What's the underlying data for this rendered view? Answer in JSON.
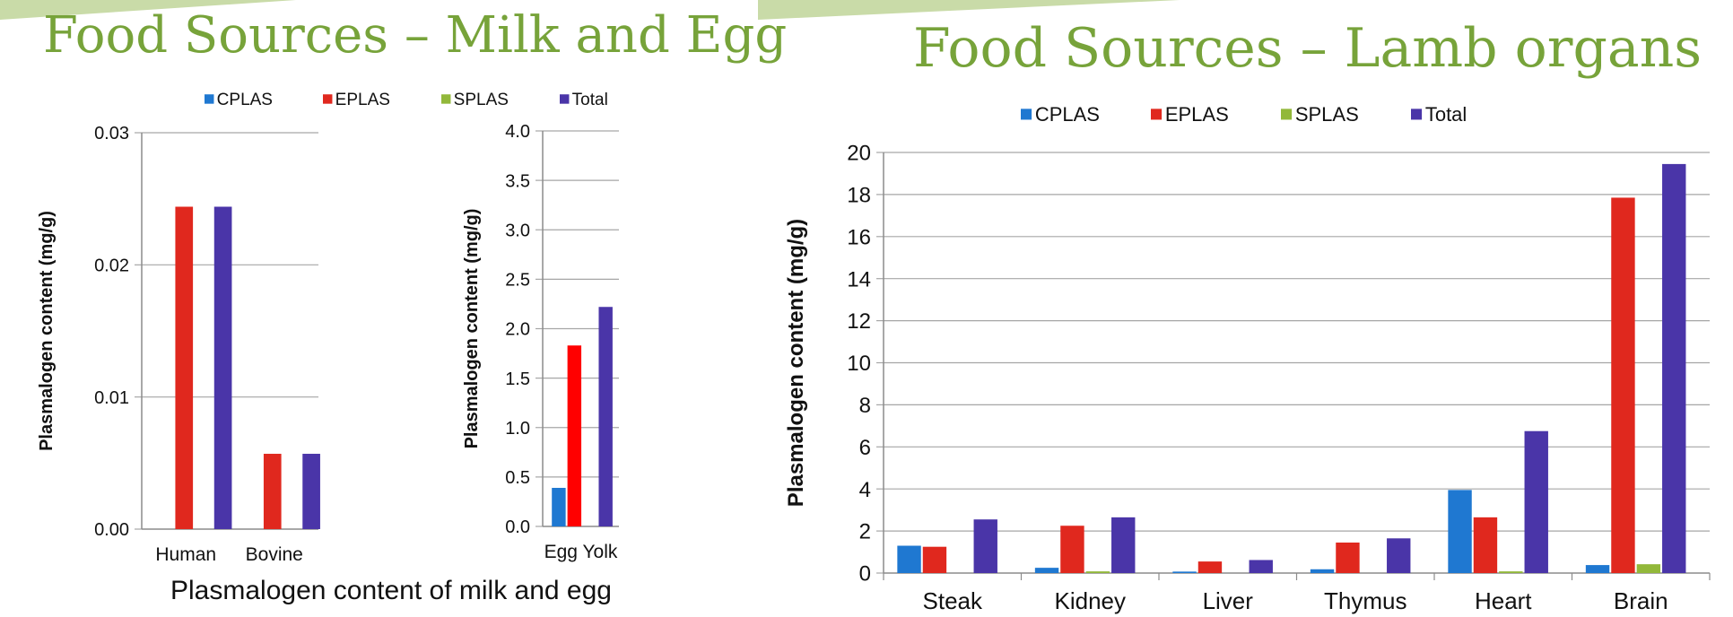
{
  "slides": {
    "left_title": "Food Sources – Milk and Egg",
    "right_title": "Food Sources – Lamb organs",
    "left_caption": "Plasmalogen content of milk and egg"
  },
  "colors": {
    "CPLAS": "#1f78d1",
    "EPLAS": "#e0281e",
    "EPLAS_egg": "#ff0000",
    "SPLAS": "#92b83a",
    "Total": "#4a35a8",
    "title": "#77a33a",
    "grid": "#a6a6a6"
  },
  "chart_data": [
    {
      "id": "milk",
      "type": "bar",
      "title": "",
      "legend": [
        "CPLAS",
        "EPLAS",
        "SPLAS",
        "Total"
      ],
      "categories": [
        "Human",
        "Bovine"
      ],
      "series": [
        {
          "name": "CPLAS",
          "values": [
            0,
            0
          ]
        },
        {
          "name": "EPLAS",
          "values": [
            0.0244,
            0.0057
          ]
        },
        {
          "name": "SPLAS",
          "values": [
            0,
            0
          ]
        },
        {
          "name": "Total",
          "values": [
            0.0244,
            0.0057
          ]
        }
      ],
      "ylabel": "Plasmalogen content (mg/g)",
      "ylim": [
        0,
        0.03
      ],
      "yticks": [
        "0.00",
        "0.01",
        "0.02",
        "0.03"
      ],
      "grid": true
    },
    {
      "id": "egg",
      "type": "bar",
      "title": "",
      "categories": [
        "Egg Yolk"
      ],
      "series": [
        {
          "name": "CPLAS",
          "values": [
            0.39
          ]
        },
        {
          "name": "EPLAS",
          "values": [
            1.83
          ]
        },
        {
          "name": "SPLAS",
          "values": [
            0
          ]
        },
        {
          "name": "Total",
          "values": [
            2.22
          ]
        }
      ],
      "ylabel": "Plasmalogen content (mg/g)",
      "ylim": [
        0,
        4.0
      ],
      "yticks": [
        "0.0",
        "0.5",
        "1.0",
        "1.5",
        "2.0",
        "2.5",
        "3.0",
        "3.5",
        "4.0"
      ],
      "grid": true
    },
    {
      "id": "lamb",
      "type": "bar",
      "title": "",
      "legend": [
        "CPLAS",
        "EPLAS",
        "SPLAS",
        "Total"
      ],
      "categories": [
        "Steak",
        "Kidney",
        "Liver",
        "Thymus",
        "Heart",
        "Brain"
      ],
      "series": [
        {
          "name": "CPLAS",
          "values": [
            1.3,
            0.25,
            0.07,
            0.18,
            3.95,
            0.38
          ]
        },
        {
          "name": "EPLAS",
          "values": [
            1.25,
            2.25,
            0.55,
            1.45,
            2.65,
            17.85
          ]
        },
        {
          "name": "SPLAS",
          "values": [
            0,
            0.08,
            0,
            0,
            0.08,
            0.42
          ]
        },
        {
          "name": "Total",
          "values": [
            2.55,
            2.65,
            0.62,
            1.65,
            6.75,
            19.45
          ]
        }
      ],
      "ylabel": "Plasmalogen content (mg/g)",
      "ylim": [
        0,
        20
      ],
      "yticks": [
        "0",
        "2",
        "4",
        "6",
        "8",
        "10",
        "12",
        "14",
        "16",
        "18",
        "20"
      ],
      "grid": true
    }
  ]
}
